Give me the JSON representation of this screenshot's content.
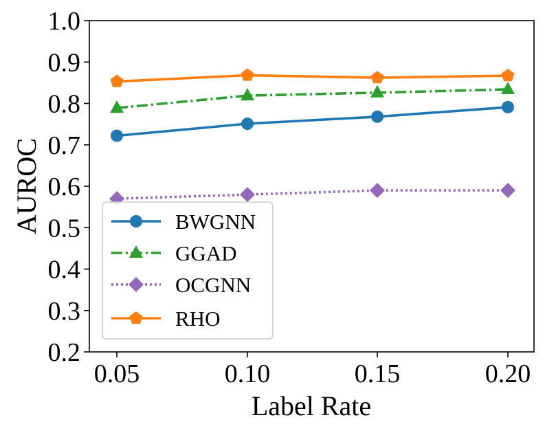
{
  "chart_data": {
    "type": "line",
    "title": "",
    "xlabel": "Label Rate",
    "ylabel": "AUROC",
    "x": [
      0.05,
      0.1,
      0.15,
      0.2
    ],
    "x_tick_labels": [
      "0.05",
      "0.10",
      "0.15",
      "0.20"
    ],
    "ylim": [
      0.2,
      1.0
    ],
    "y_ticks": [
      0.2,
      0.3,
      0.4,
      0.5,
      0.6,
      0.7,
      0.8,
      0.9,
      1.0
    ],
    "y_tick_labels": [
      "0.2",
      "0.3",
      "0.4",
      "0.5",
      "0.6",
      "0.7",
      "0.8",
      "0.9",
      "1.0"
    ],
    "grid": false,
    "legend_position": "lower-left",
    "series": [
      {
        "name": "BWGNN",
        "values": [
          0.722,
          0.751,
          0.768,
          0.791
        ],
        "color": "#1f77b4",
        "marker": "circle",
        "linestyle": "solid"
      },
      {
        "name": "GGAD",
        "values": [
          0.789,
          0.819,
          0.826,
          0.834
        ],
        "color": "#2ca02c",
        "marker": "triangle",
        "linestyle": "dashdot"
      },
      {
        "name": "OCGNN",
        "values": [
          0.57,
          0.58,
          0.59,
          0.59
        ],
        "color": "#9467bd",
        "marker": "diamond",
        "linestyle": "dotted"
      },
      {
        "name": "RHO",
        "values": [
          0.853,
          0.868,
          0.862,
          0.867
        ],
        "color": "#ff7f0e",
        "marker": "pentagon",
        "linestyle": "solid"
      }
    ]
  }
}
